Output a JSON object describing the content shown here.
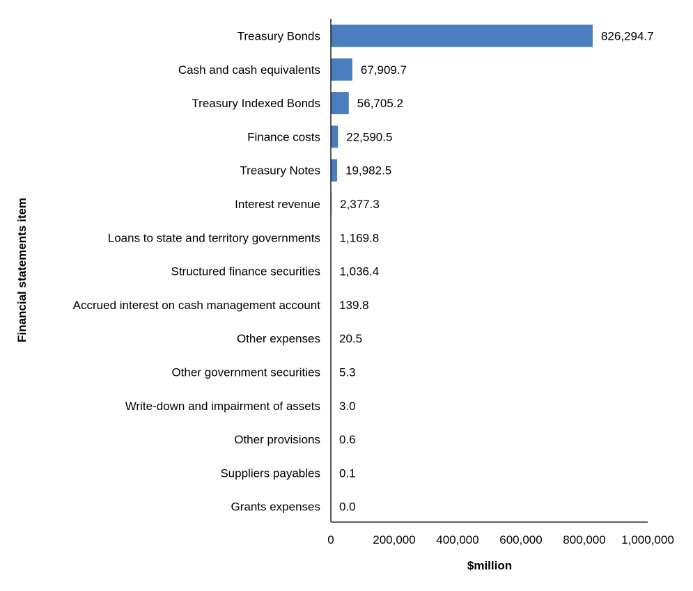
{
  "chart_data": {
    "type": "bar",
    "orientation": "horizontal",
    "xlabel": "$million",
    "ylabel": "Financial statements item",
    "xlim": [
      0,
      1000000
    ],
    "xticks": [
      0,
      200000,
      400000,
      600000,
      800000,
      1000000
    ],
    "xtick_labels": [
      "0",
      "200,000",
      "400,000",
      "600,000",
      "800,000",
      "1,000,000"
    ],
    "bar_color": "#4a7ebf",
    "grid": false,
    "categories": [
      "Treasury Bonds",
      "Cash and cash equivalents",
      "Treasury Indexed Bonds",
      "Finance costs",
      "Treasury Notes",
      "Interest revenue",
      "Loans to state and territory governments",
      "Structured finance securities",
      "Accrued interest on cash management account",
      "Other expenses",
      "Other government securities",
      "Write-down and impairment of assets",
      "Other provisions",
      "Suppliers payables",
      "Grants expenses"
    ],
    "values": [
      826294.7,
      67909.7,
      56705.2,
      22590.5,
      19982.5,
      2377.3,
      1169.8,
      1036.4,
      139.8,
      20.5,
      5.3,
      3.0,
      0.6,
      0.1,
      0.0
    ],
    "value_labels": [
      "826,294.7",
      "67,909.7",
      "56,705.2",
      "22,590.5",
      "19,982.5",
      "2,377.3",
      "1,169.8",
      "1,036.4",
      "139.8",
      "20.5",
      "5.3",
      "3.0",
      "0.6",
      "0.1",
      "0.0"
    ]
  }
}
